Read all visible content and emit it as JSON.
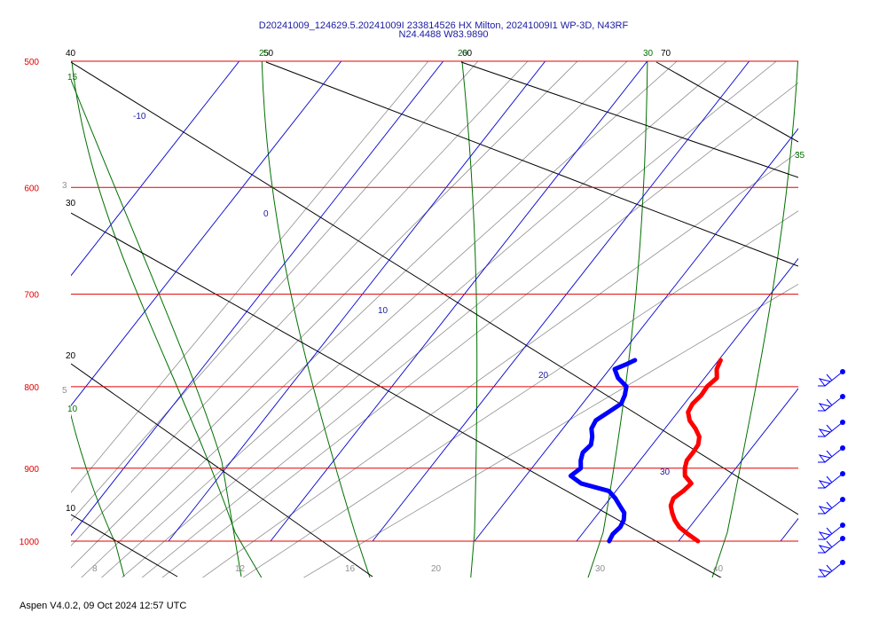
{
  "header": {
    "title_line1": "D20241009_124629.5.20241009I 233814526 HX Milton, 20241009I1 WP-3D, N43RF",
    "title_line2": "N24.4488 W83.9890"
  },
  "footer": {
    "text": "Aspen V4.0.2, 09 Oct 2024  12:57 UTC"
  },
  "colors": {
    "isobar": "#e00000",
    "isotherm": "#0000d0",
    "dry_adiabat": "#000000",
    "moist_adiabat": "#007000",
    "mixing_ratio": "#909090",
    "temperature": "#ff0000",
    "dewpoint": "#0000ff",
    "wind_barb": "#0000ff"
  },
  "chart_data": {
    "type": "skew-t",
    "pressure_range_hpa": [
      1000,
      500
    ],
    "pressure_labels": [
      "500",
      "600",
      "700",
      "800",
      "900",
      "1000"
    ],
    "isotherm_labels": [
      "-10",
      "0",
      "10",
      "20",
      "30"
    ],
    "dry_adiabat_labels": [
      "40",
      "30",
      "20",
      "10",
      "50",
      "60",
      "70"
    ],
    "moist_adiabat_labels": [
      "15",
      "10",
      "25",
      "20",
      "30",
      "35"
    ],
    "mixing_ratio_labels": [
      "8",
      "12",
      "16",
      "20",
      "30",
      "40",
      "3",
      "5"
    ],
    "temperature_profile": {
      "pressure_hpa": [
        770,
        780,
        790,
        800,
        810,
        820,
        830,
        840,
        850,
        860,
        870,
        880,
        890,
        900,
        910,
        920,
        930,
        940,
        950,
        960,
        970,
        980,
        990,
        1000
      ],
      "temp_c": [
        10.2,
        10.5,
        11.2,
        10.9,
        11.0,
        10.8,
        11.0,
        11.8,
        13.0,
        14.0,
        14.5,
        14.6,
        14.6,
        15.0,
        15.6,
        16.8,
        16.6,
        16.2,
        16.5,
        17.2,
        18.0,
        19.0,
        20.4,
        21.9
      ]
    },
    "dewpoint_profile": {
      "pressure_hpa": [
        770,
        775,
        780,
        790,
        800,
        810,
        820,
        830,
        840,
        850,
        860,
        870,
        880,
        890,
        900,
        910,
        920,
        930,
        940,
        950,
        960,
        970,
        980,
        990,
        1000
      ],
      "dewpt_c": [
        1.8,
        1.2,
        0.5,
        1.5,
        3.0,
        3.5,
        3.8,
        3.2,
        2.6,
        2.8,
        3.5,
        4.0,
        3.8,
        4.2,
        4.8,
        4.4,
        6.0,
        9.3,
        10.5,
        11.5,
        12.5,
        13.0,
        13.2,
        13.0,
        13.2
      ]
    },
    "wind_barbs": [
      {
        "y_label": "800"
      },
      {
        "y_label": "830"
      },
      {
        "y_label": "855"
      },
      {
        "y_label": "880"
      },
      {
        "y_label": "910"
      },
      {
        "y_label": "940"
      },
      {
        "y_label": "960"
      },
      {
        "y_label": "975"
      },
      {
        "y_label": "990"
      }
    ]
  }
}
